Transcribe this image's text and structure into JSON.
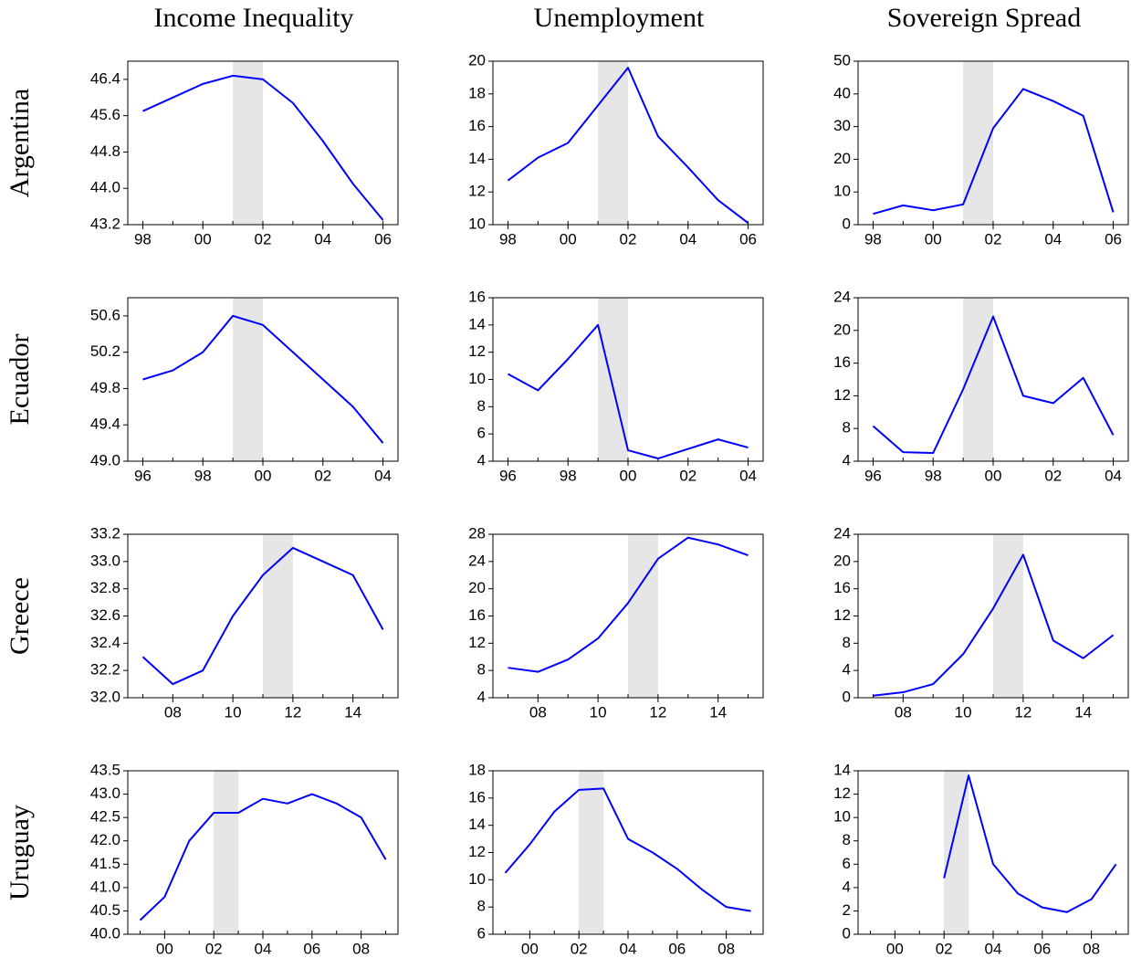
{
  "column_titles": [
    "Income Inequality",
    "Unemployment",
    "Sovereign Spread"
  ],
  "row_labels": [
    "Argentina",
    "Ecuador",
    "Greece",
    "Uruguay"
  ],
  "chart_data": [
    {
      "type": "line",
      "color": "#0000ff",
      "shade": [
        2001,
        2002
      ],
      "shade_color": "#e6e6e6",
      "x": [
        1998,
        1999,
        2000,
        2001,
        2002,
        2003,
        2004,
        2005,
        2006
      ],
      "values": [
        45.7,
        46.0,
        46.3,
        46.48,
        46.4,
        45.88,
        45.04,
        44.1,
        43.3
      ],
      "xlim": [
        1997.5,
        2006.5
      ],
      "xticks": [
        {
          "value": 1998,
          "label": "98"
        },
        {
          "value": 2000,
          "label": "00"
        },
        {
          "value": 2002,
          "label": "02"
        },
        {
          "value": 2004,
          "label": "04"
        },
        {
          "value": 2006,
          "label": "06"
        }
      ],
      "ylim": [
        43.2,
        46.8
      ],
      "yticks": [
        43.2,
        {
          "value": 44,
          "label": "44.0"
        },
        44.8,
        45.6,
        46.4
      ]
    },
    {
      "type": "line",
      "color": "#0000ff",
      "shade": [
        2001,
        2002
      ],
      "shade_color": "#e6e6e6",
      "x": [
        1998,
        1999,
        2000,
        2001,
        2002,
        2003,
        2004,
        2005,
        2006
      ],
      "values": [
        12.7,
        14.1,
        15.0,
        17.3,
        19.6,
        15.4,
        13.5,
        11.5,
        10.1
      ],
      "xlim": [
        1997.5,
        2006.5
      ],
      "xticks": [
        {
          "value": 1998,
          "label": "98"
        },
        {
          "value": 2000,
          "label": "00"
        },
        {
          "value": 2002,
          "label": "02"
        },
        {
          "value": 2004,
          "label": "04"
        },
        {
          "value": 2006,
          "label": "06"
        }
      ],
      "ylim": [
        10,
        20
      ],
      "yticks": [
        10,
        12,
        14,
        16,
        18,
        20
      ]
    },
    {
      "type": "line",
      "color": "#0000ff",
      "shade": [
        2001,
        2002
      ],
      "shade_color": "#e6e6e6",
      "x": [
        1998,
        1999,
        2000,
        2001,
        2002,
        2003,
        2004,
        2005,
        2006
      ],
      "values": [
        3.3,
        5.9,
        4.4,
        6.2,
        29.5,
        41.5,
        37.8,
        33.3,
        3.8
      ],
      "xlim": [
        1997.5,
        2006.5
      ],
      "xticks": [
        {
          "value": 1998,
          "label": "98"
        },
        {
          "value": 2000,
          "label": "00"
        },
        {
          "value": 2002,
          "label": "02"
        },
        {
          "value": 2004,
          "label": "04"
        },
        {
          "value": 2006,
          "label": "06"
        }
      ],
      "ylim": [
        0,
        50
      ],
      "yticks": [
        0,
        10,
        20,
        30,
        40,
        50
      ]
    },
    {
      "type": "line",
      "color": "#0000ff",
      "shade": [
        1999,
        2000
      ],
      "shade_color": "#e6e6e6",
      "x": [
        1996,
        1997,
        1998,
        1999,
        2000,
        2001,
        2002,
        2003,
        2004
      ],
      "values": [
        49.9,
        50.0,
        50.2,
        50.6,
        50.5,
        50.2,
        49.9,
        49.6,
        49.2
      ],
      "xlim": [
        1995.5,
        2004.5
      ],
      "xticks": [
        {
          "value": 1996,
          "label": "96"
        },
        {
          "value": 1998,
          "label": "98"
        },
        {
          "value": 2000,
          "label": "00"
        },
        {
          "value": 2002,
          "label": "02"
        },
        {
          "value": 2004,
          "label": "04"
        }
      ],
      "ylim": [
        49.0,
        50.8
      ],
      "yticks": [
        {
          "value": 49,
          "label": "49.0"
        },
        49.4,
        49.8,
        50.2,
        50.6
      ]
    },
    {
      "type": "line",
      "color": "#0000ff",
      "shade": [
        1999,
        2000
      ],
      "shade_color": "#e6e6e6",
      "x": [
        1996,
        1997,
        1998,
        1999,
        2000,
        2001,
        2002,
        2003,
        2004
      ],
      "values": [
        10.4,
        9.2,
        11.5,
        14.0,
        4.8,
        4.2,
        4.9,
        5.6,
        5.0
      ],
      "xlim": [
        1995.5,
        2004.5
      ],
      "xticks": [
        {
          "value": 1996,
          "label": "96"
        },
        {
          "value": 1998,
          "label": "98"
        },
        {
          "value": 2000,
          "label": "00"
        },
        {
          "value": 2002,
          "label": "02"
        },
        {
          "value": 2004,
          "label": "04"
        }
      ],
      "ylim": [
        4,
        16
      ],
      "yticks": [
        4,
        6,
        8,
        10,
        12,
        14,
        16
      ]
    },
    {
      "type": "line",
      "color": "#0000ff",
      "shade": [
        1999,
        2000
      ],
      "shade_color": "#e6e6e6",
      "x": [
        1996,
        1997,
        1998,
        1999,
        2000,
        2001,
        2002,
        2003,
        2004
      ],
      "values": [
        8.3,
        5.1,
        5.0,
        12.8,
        21.7,
        12.0,
        11.1,
        14.2,
        7.2
      ],
      "xlim": [
        1995.5,
        2004.5
      ],
      "xticks": [
        {
          "value": 1996,
          "label": "96"
        },
        {
          "value": 1998,
          "label": "98"
        },
        {
          "value": 2000,
          "label": "00"
        },
        {
          "value": 2002,
          "label": "02"
        },
        {
          "value": 2004,
          "label": "04"
        }
      ],
      "ylim": [
        4,
        24
      ],
      "yticks": [
        4,
        8,
        12,
        16,
        20,
        24
      ]
    },
    {
      "type": "line",
      "color": "#0000ff",
      "shade": [
        2011,
        2012
      ],
      "shade_color": "#e6e6e6",
      "x": [
        2007,
        2008,
        2009,
        2010,
        2011,
        2012,
        2013,
        2014,
        2015
      ],
      "values": [
        32.3,
        32.1,
        32.2,
        32.6,
        32.9,
        33.1,
        33.0,
        32.9,
        32.5
      ],
      "xlim": [
        2006.5,
        2015.5
      ],
      "xticks": [
        {
          "value": 2008,
          "label": "08"
        },
        {
          "value": 2010,
          "label": "10"
        },
        {
          "value": 2012,
          "label": "12"
        },
        {
          "value": 2014,
          "label": "14"
        }
      ],
      "ylim": [
        32.0,
        33.2
      ],
      "yticks": [
        {
          "value": 32,
          "label": "32.0"
        },
        32.2,
        32.4,
        32.6,
        32.8,
        {
          "value": 33,
          "label": "33.0"
        },
        33.2
      ]
    },
    {
      "type": "line",
      "color": "#0000ff",
      "shade": [
        2011,
        2012
      ],
      "shade_color": "#e6e6e6",
      "x": [
        2007,
        2008,
        2009,
        2010,
        2011,
        2012,
        2013,
        2014,
        2015
      ],
      "values": [
        8.4,
        7.8,
        9.6,
        12.7,
        17.9,
        24.4,
        27.5,
        26.5,
        24.9
      ],
      "xlim": [
        2006.5,
        2015.5
      ],
      "xticks": [
        {
          "value": 2008,
          "label": "08"
        },
        {
          "value": 2010,
          "label": "10"
        },
        {
          "value": 2012,
          "label": "12"
        },
        {
          "value": 2014,
          "label": "14"
        }
      ],
      "ylim": [
        4,
        28
      ],
      "yticks": [
        4,
        8,
        12,
        16,
        20,
        24,
        28
      ]
    },
    {
      "type": "line",
      "color": "#0000ff",
      "shade": [
        2011,
        2012
      ],
      "shade_color": "#e6e6e6",
      "x": [
        2007,
        2008,
        2009,
        2010,
        2011,
        2012,
        2013,
        2014,
        2015
      ],
      "values": [
        0.3,
        0.8,
        2.0,
        6.4,
        13.1,
        21.0,
        8.4,
        5.8,
        9.2
      ],
      "xlim": [
        2006.5,
        2015.5
      ],
      "xticks": [
        {
          "value": 2008,
          "label": "08"
        },
        {
          "value": 2010,
          "label": "10"
        },
        {
          "value": 2012,
          "label": "12"
        },
        {
          "value": 2014,
          "label": "14"
        }
      ],
      "ylim": [
        0,
        24
      ],
      "yticks": [
        0,
        4,
        8,
        12,
        16,
        20,
        24
      ]
    },
    {
      "type": "line",
      "color": "#0000ff",
      "shade": [
        2002,
        2003
      ],
      "shade_color": "#e6e6e6",
      "x": [
        1999,
        2000,
        2001,
        2002,
        2003,
        2004,
        2005,
        2006,
        2007,
        2008,
        2009
      ],
      "values": [
        40.3,
        40.8,
        42.0,
        42.6,
        42.6,
        42.9,
        42.8,
        43.0,
        42.8,
        42.5,
        41.6
      ],
      "xlim": [
        1998.5,
        2009.5
      ],
      "xticks": [
        {
          "value": 2000,
          "label": "00"
        },
        {
          "value": 2002,
          "label": "02"
        },
        {
          "value": 2004,
          "label": "04"
        },
        {
          "value": 2006,
          "label": "06"
        },
        {
          "value": 2008,
          "label": "08"
        }
      ],
      "ylim": [
        40,
        43.5
      ],
      "yticks": [
        {
          "value": 40,
          "label": "40.0"
        },
        40.5,
        {
          "value": 41,
          "label": "41.0"
        },
        41.5,
        {
          "value": 42,
          "label": "42.0"
        },
        42.5,
        {
          "value": 43,
          "label": "43.0"
        },
        43.5
      ]
    },
    {
      "type": "line",
      "color": "#0000ff",
      "shade": [
        2002,
        2003
      ],
      "shade_color": "#e6e6e6",
      "x": [
        1999,
        2000,
        2001,
        2002,
        2003,
        2004,
        2005,
        2006,
        2007,
        2008,
        2009
      ],
      "values": [
        10.5,
        12.6,
        15.0,
        16.6,
        16.7,
        13.0,
        12.0,
        10.8,
        9.3,
        8.0,
        7.7
      ],
      "xlim": [
        1998.5,
        2009.5
      ],
      "xticks": [
        {
          "value": 2000,
          "label": "00"
        },
        {
          "value": 2002,
          "label": "02"
        },
        {
          "value": 2004,
          "label": "04"
        },
        {
          "value": 2006,
          "label": "06"
        },
        {
          "value": 2008,
          "label": "08"
        }
      ],
      "ylim": [
        6,
        18
      ],
      "yticks": [
        6,
        8,
        10,
        12,
        14,
        16,
        18
      ]
    },
    {
      "type": "line",
      "color": "#0000ff",
      "shade": [
        2002,
        2003
      ],
      "shade_color": "#e6e6e6",
      "x": [
        1999,
        2000,
        2001,
        2002,
        2003,
        2004,
        2005,
        2006,
        2007,
        2008,
        2009
      ],
      "values": [
        null,
        null,
        null,
        4.8,
        13.6,
        6.0,
        3.5,
        2.3,
        1.9,
        3.0,
        6.0
      ],
      "xlim": [
        1998.5,
        2009.5
      ],
      "xticks": [
        {
          "value": 2000,
          "label": "00"
        },
        {
          "value": 2002,
          "label": "02"
        },
        {
          "value": 2004,
          "label": "04"
        },
        {
          "value": 2006,
          "label": "06"
        },
        {
          "value": 2008,
          "label": "08"
        }
      ],
      "ylim": [
        0,
        14
      ],
      "yticks": [
        0,
        2,
        4,
        6,
        8,
        10,
        12,
        14
      ]
    }
  ]
}
